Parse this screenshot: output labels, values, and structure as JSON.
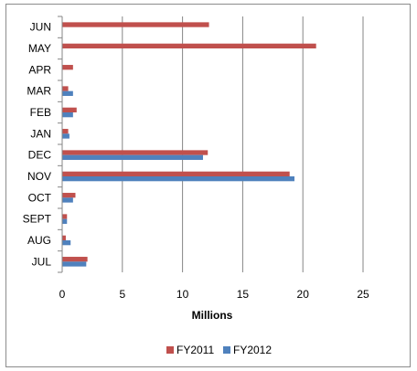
{
  "chart_data": {
    "type": "bar",
    "orientation": "horizontal",
    "categories": [
      "JUL",
      "AUG",
      "SEPT",
      "OCT",
      "NOV",
      "DEC",
      "JAN",
      "FEB",
      "MAR",
      "APR",
      "MAY",
      "JUN"
    ],
    "series": [
      {
        "name": "FY2011",
        "color": "#C0504D",
        "values": [
          2.1,
          0.3,
          0.4,
          1.1,
          18.9,
          12.1,
          0.5,
          1.2,
          0.5,
          0.9,
          21.1,
          12.2
        ]
      },
      {
        "name": "FY2012",
        "color": "#4F81BD",
        "values": [
          2.0,
          0.7,
          0.4,
          0.9,
          19.3,
          11.7,
          0.6,
          0.9,
          0.9,
          null,
          null,
          null
        ]
      }
    ],
    "xlabel": "Millions",
    "ylabel": "",
    "xlim": [
      0,
      25
    ],
    "xticks": [
      "0",
      "5",
      "10",
      "15",
      "20",
      "25"
    ],
    "grid": "vertical",
    "legend": "bottom"
  }
}
